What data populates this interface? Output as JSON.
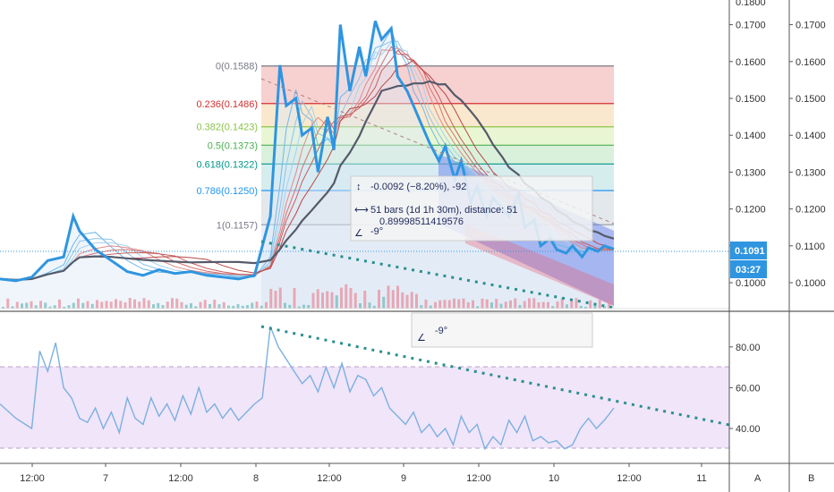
{
  "chart_data": [
    {
      "type": "line",
      "panel": "price",
      "y_ticks_primary": [
        "0.1700",
        "0.1600",
        "0.1500",
        "0.1400",
        "0.1300",
        "0.1200",
        "0.1100",
        "0.1000"
      ],
      "y_ticks_secondary": [
        "0.1700",
        "0.1600",
        "0.1500",
        "0.1400",
        "0.1300",
        "0.1200",
        "0.1100",
        "0.1000"
      ],
      "y_top_label": "0.1800",
      "ylim": [
        0.095,
        0.181
      ],
      "x_ticks": [
        "12:00",
        "7",
        "12:00",
        "8",
        "12:00",
        "9",
        "12:00",
        "10",
        "12:00",
        "11"
      ],
      "current_price": "0.1091",
      "countdown": "03:27",
      "price_series": [
        [
          0,
          0.101
        ],
        [
          1,
          0.1005
        ],
        [
          2,
          0.1015
        ],
        [
          3,
          0.106
        ],
        [
          4,
          0.107
        ],
        [
          4.6,
          0.118
        ],
        [
          5,
          0.114
        ],
        [
          6,
          0.109
        ],
        [
          7,
          0.106
        ],
        [
          8,
          0.103
        ],
        [
          9,
          0.102
        ],
        [
          10,
          0.1035
        ],
        [
          11,
          0.1025
        ],
        [
          12,
          0.103
        ],
        [
          13,
          0.102
        ],
        [
          14,
          0.1015
        ],
        [
          15,
          0.101
        ],
        [
          16,
          0.102
        ],
        [
          17,
          0.118
        ],
        [
          17.6,
          0.159
        ],
        [
          18,
          0.148
        ],
        [
          18.6,
          0.15
        ],
        [
          19,
          0.14
        ],
        [
          19.6,
          0.142
        ],
        [
          20,
          0.13
        ],
        [
          20.6,
          0.145
        ],
        [
          21,
          0.136
        ],
        [
          21.4,
          0.17
        ],
        [
          22,
          0.152
        ],
        [
          22.6,
          0.164
        ],
        [
          23,
          0.156
        ],
        [
          23.6,
          0.171
        ],
        [
          24,
          0.166
        ],
        [
          24.6,
          0.169
        ],
        [
          25,
          0.156
        ],
        [
          25.6,
          0.152
        ],
        [
          26,
          0.148
        ],
        [
          26.6,
          0.142
        ],
        [
          27,
          0.138
        ],
        [
          27.6,
          0.133
        ],
        [
          28,
          0.137
        ],
        [
          28.6,
          0.128
        ],
        [
          29,
          0.133
        ],
        [
          29.6,
          0.122
        ],
        [
          30,
          0.126
        ],
        [
          30.6,
          0.118
        ],
        [
          31,
          0.123
        ],
        [
          31.6,
          0.12
        ],
        [
          32,
          0.118
        ],
        [
          32.6,
          0.124
        ],
        [
          33,
          0.115
        ],
        [
          33.6,
          0.117
        ],
        [
          34,
          0.11
        ],
        [
          34.6,
          0.112
        ],
        [
          35,
          0.109
        ],
        [
          35.6,
          0.108
        ],
        [
          36,
          0.11
        ],
        [
          36.6,
          0.107
        ],
        [
          37,
          0.1095
        ],
        [
          37.6,
          0.1085
        ],
        [
          38,
          0.11
        ],
        [
          38.6,
          0.1091
        ]
      ],
      "fibonacci": [
        {
          "level": "0",
          "price": "0.1588",
          "color": "#787b86",
          "fill": "#f5c4c4"
        },
        {
          "level": "0.236",
          "price": "0.1486",
          "color": "#d32f2f",
          "fill": "#f9e2c2"
        },
        {
          "level": "0.382",
          "price": "0.1423",
          "color": "#8bc34a",
          "fill": "#e4f4c8"
        },
        {
          "level": "0.5",
          "price": "0.1373",
          "color": "#4caf50",
          "fill": "#cfeed2"
        },
        {
          "level": "0.618",
          "price": "0.1322",
          "color": "#009688",
          "fill": "#cce8ea"
        },
        {
          "level": "0.786",
          "price": "0.1250",
          "color": "#2196f3",
          "fill": "#dce2e8"
        },
        {
          "level": "1",
          "price": "0.1157",
          "color": "#787b86",
          "fill": null
        }
      ],
      "measure": {
        "change": "-0.0092 (−8.20%), -92",
        "bars": "51 bars (1d 1h 30m), distance: 51",
        "ratio": "0.89998511419576",
        "angle": "-9°"
      }
    },
    {
      "type": "line",
      "panel": "rsi",
      "y_ticks": [
        "80.00",
        "60.00",
        "40.00"
      ],
      "ylim": [
        25,
        95
      ],
      "band": [
        30,
        70
      ],
      "color": "#7bb0e0",
      "angle_label": "-9°",
      "rsi_series": [
        [
          0,
          52
        ],
        [
          1,
          45
        ],
        [
          2,
          40
        ],
        [
          2.5,
          78
        ],
        [
          3,
          68
        ],
        [
          3.5,
          82
        ],
        [
          4,
          60
        ],
        [
          4.5,
          55
        ],
        [
          5,
          45
        ],
        [
          5.5,
          43
        ],
        [
          6,
          50
        ],
        [
          6.5,
          40
        ],
        [
          7,
          48
        ],
        [
          7.5,
          38
        ],
        [
          8,
          55
        ],
        [
          8.5,
          45
        ],
        [
          9,
          42
        ],
        [
          9.5,
          55
        ],
        [
          10,
          46
        ],
        [
          10.5,
          52
        ],
        [
          11,
          44
        ],
        [
          11.5,
          56
        ],
        [
          12,
          47
        ],
        [
          12.5,
          60
        ],
        [
          13,
          48
        ],
        [
          13.5,
          52
        ],
        [
          14,
          45
        ],
        [
          14.5,
          50
        ],
        [
          15,
          44
        ],
        [
          15.5,
          48
        ],
        [
          16,
          52
        ],
        [
          16.5,
          55
        ],
        [
          17,
          90
        ],
        [
          17.5,
          80
        ],
        [
          18,
          74
        ],
        [
          18.5,
          68
        ],
        [
          19,
          62
        ],
        [
          19.5,
          66
        ],
        [
          20,
          58
        ],
        [
          20.5,
          70
        ],
        [
          21,
          60
        ],
        [
          21.5,
          72
        ],
        [
          22,
          58
        ],
        [
          22.5,
          66
        ],
        [
          23,
          64
        ],
        [
          23.5,
          56
        ],
        [
          24,
          60
        ],
        [
          24.5,
          50
        ],
        [
          25,
          46
        ],
        [
          25.5,
          42
        ],
        [
          26,
          48
        ],
        [
          26.5,
          38
        ],
        [
          27,
          42
        ],
        [
          27.5,
          36
        ],
        [
          28,
          40
        ],
        [
          28.5,
          32
        ],
        [
          29,
          46
        ],
        [
          29.5,
          38
        ],
        [
          30,
          42
        ],
        [
          30.5,
          30
        ],
        [
          31,
          36
        ],
        [
          31.5,
          32
        ],
        [
          32,
          44
        ],
        [
          32.5,
          38
        ],
        [
          33,
          46
        ],
        [
          33.5,
          34
        ],
        [
          34,
          36
        ],
        [
          34.5,
          33
        ],
        [
          35,
          34
        ],
        [
          35.5,
          30
        ],
        [
          36,
          32
        ],
        [
          36.5,
          40
        ],
        [
          37,
          45
        ],
        [
          37.5,
          40
        ],
        [
          38,
          44
        ],
        [
          38.6,
          50
        ]
      ]
    }
  ],
  "scale_buttons": {
    "auto": "A",
    "log": "B"
  }
}
